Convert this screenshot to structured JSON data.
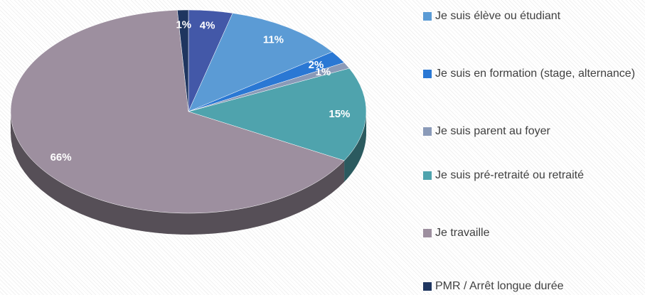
{
  "chart_data": {
    "type": "pie",
    "categories": [
      null,
      "Je suis élève ou étudiant",
      "Je suis en formation (stage, alternance)",
      "Je suis parent au foyer",
      "Je suis pré-retraité ou retraité",
      "Je travaille",
      "PMR / Arrêt longue durée"
    ],
    "values": [
      4,
      11,
      2,
      1,
      15,
      66,
      1
    ],
    "value_labels": [
      "4%",
      "11%",
      "2%",
      "1%",
      "15%",
      "66%",
      "1%"
    ],
    "colors": [
      "#4358a8",
      "#5b9bd5",
      "#2a78d4",
      "#8a9ab8",
      "#4fa3ad",
      "#9d8f9f",
      "#1f3660"
    ]
  }
}
